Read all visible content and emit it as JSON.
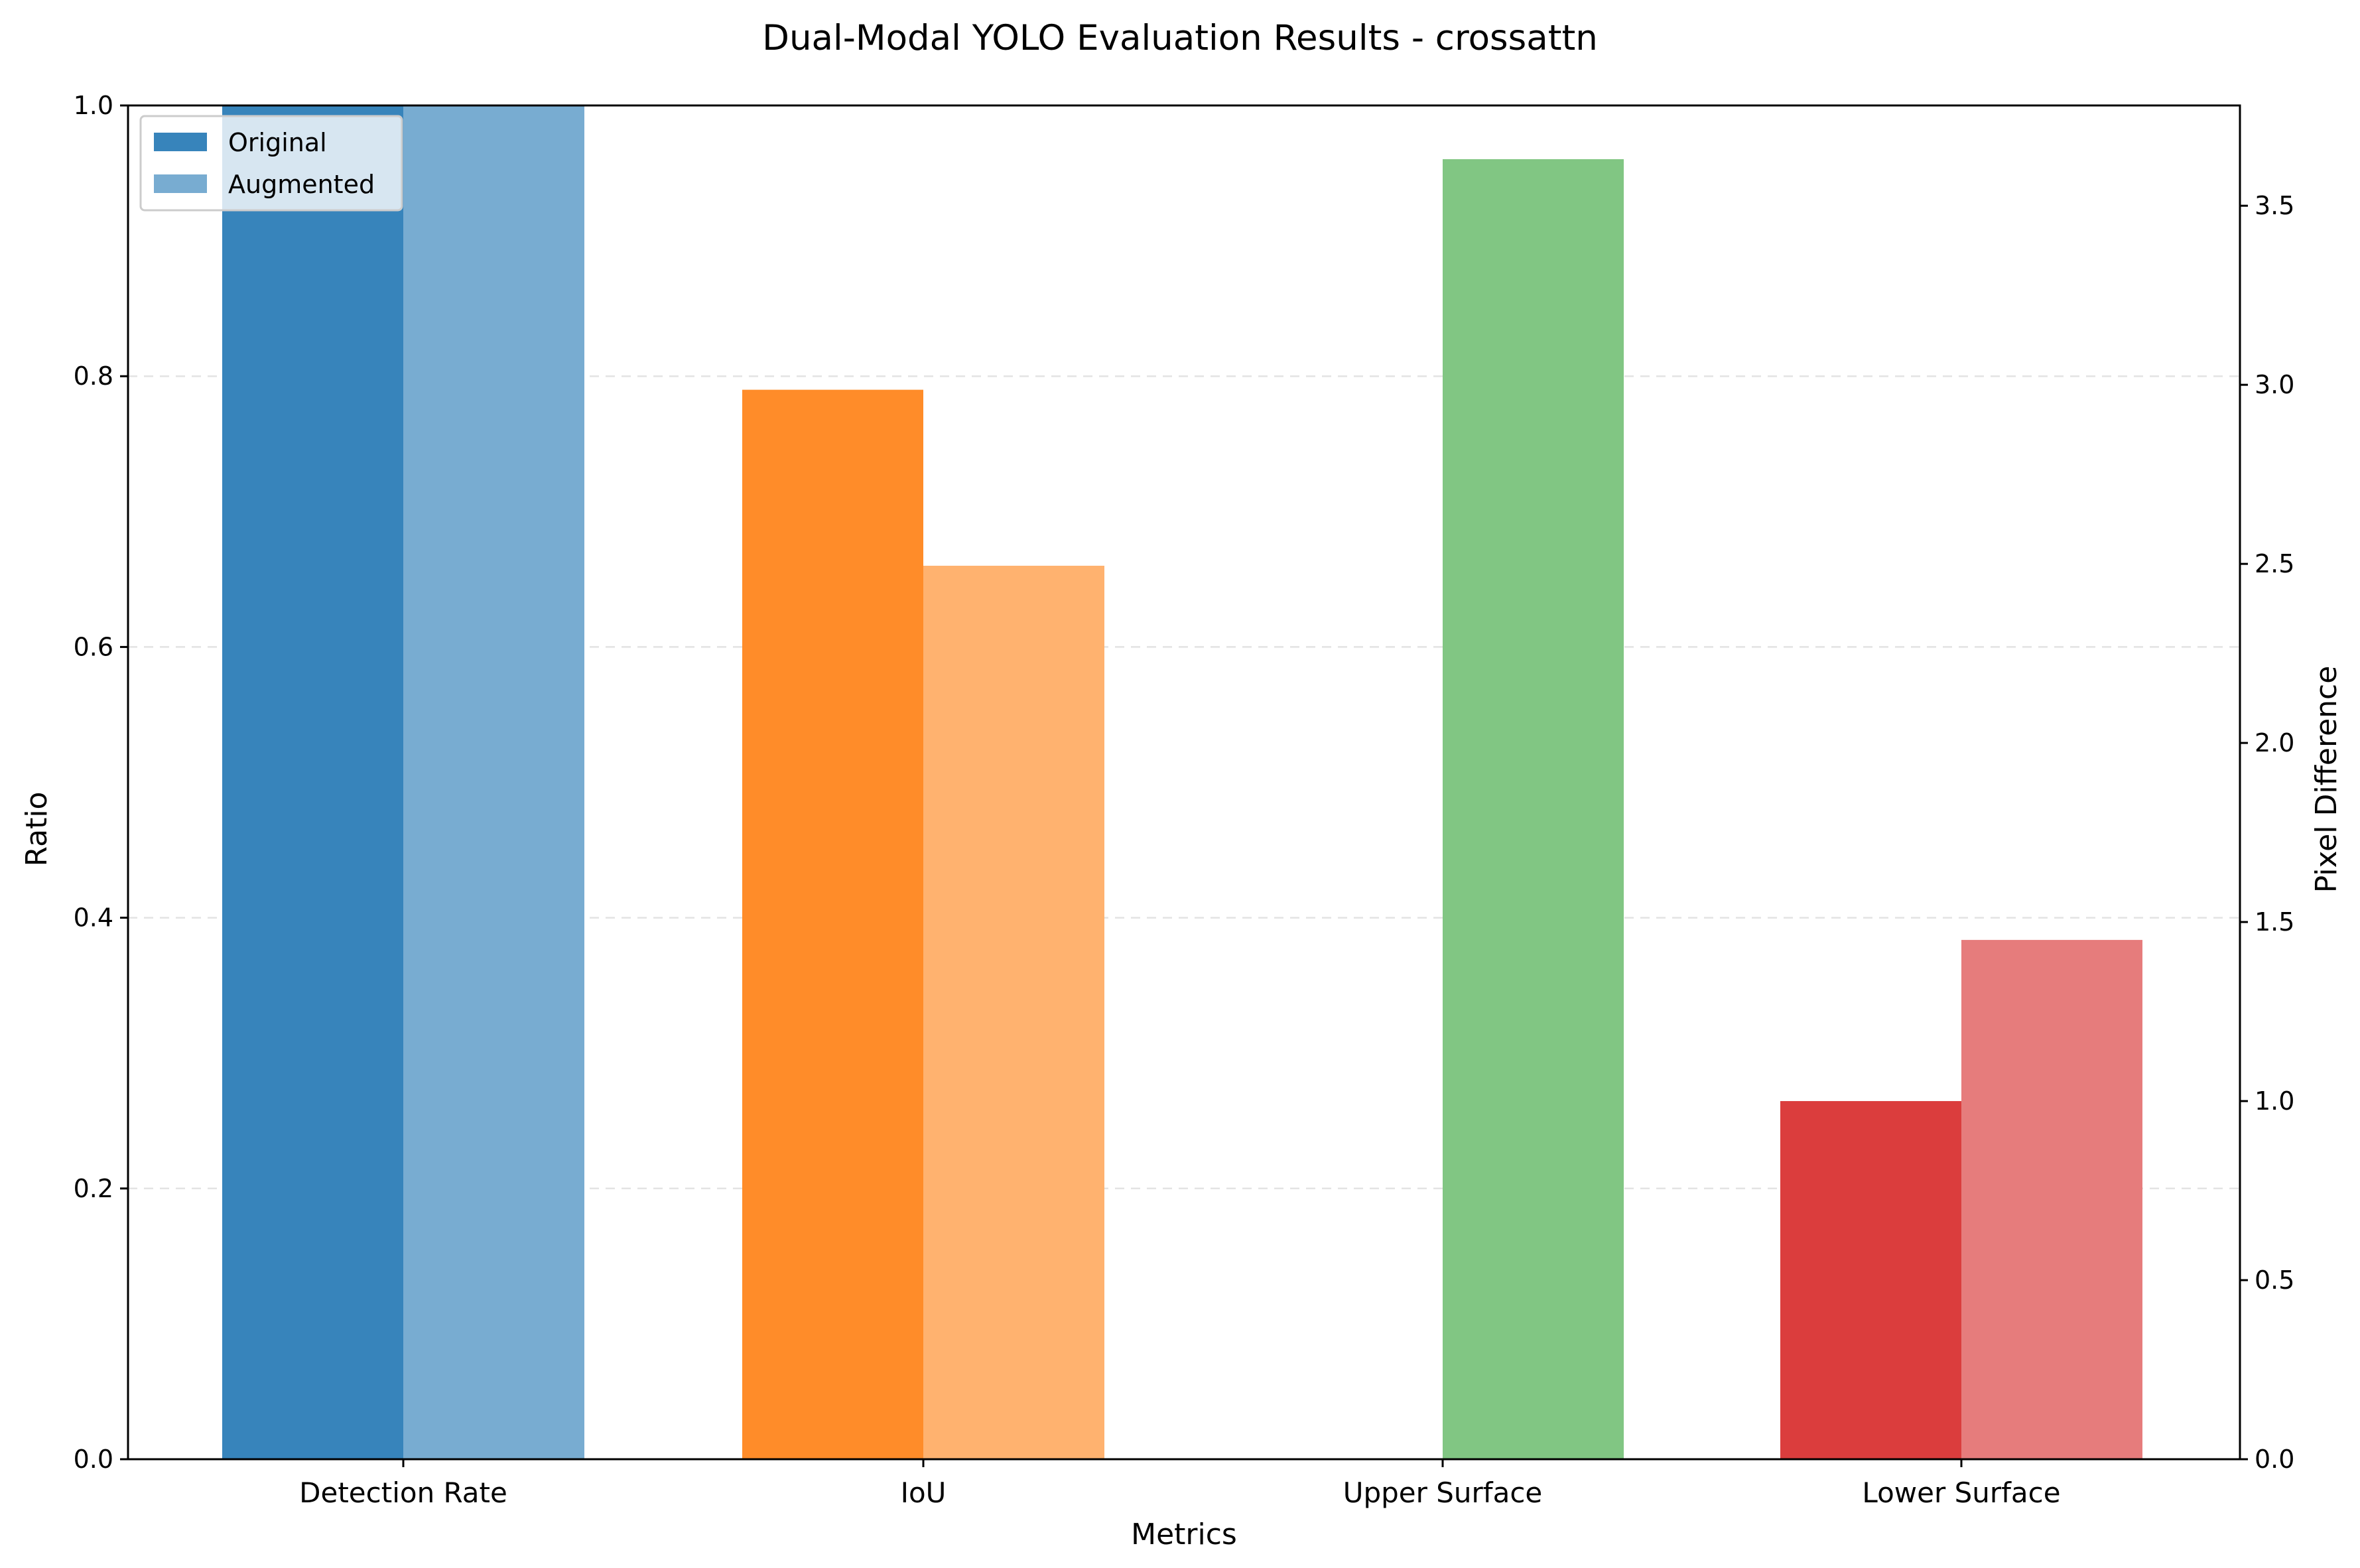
{
  "chart_data": {
    "type": "bar",
    "title": "Dual-Modal YOLO Evaluation Results - crossattn",
    "xlabel": "Metrics",
    "ylabel": "Ratio",
    "y2label": "Pixel Difference",
    "categories": [
      "Detection Rate",
      "IoU",
      "Upper Surface",
      "Lower Surface"
    ],
    "ylim": [
      0,
      1.0
    ],
    "y2lim": [
      0,
      3.78
    ],
    "yticks": [
      "0.0",
      "0.2",
      "0.4",
      "0.6",
      "0.8",
      "1.0"
    ],
    "y2ticks": [
      "0.0",
      "0.5",
      "1.0",
      "1.5",
      "2.0",
      "2.5",
      "3.0",
      "3.5"
    ],
    "grid": true,
    "legend_position": "upper-left",
    "series": [
      {
        "name": "Original",
        "values": [
          1.0,
          0.79,
          0.0,
          1.0
        ],
        "axes": [
          "left",
          "left",
          "right",
          "right"
        ],
        "colors": [
          "#3784bb",
          "#ff8c29",
          "#81c683",
          "#db3d3d"
        ]
      },
      {
        "name": "Augmented",
        "values": [
          1.0,
          0.66,
          3.63,
          1.45
        ],
        "axes": [
          "left",
          "left",
          "right",
          "right"
        ],
        "colors": [
          "#78acd1",
          "#ffb26f",
          "#81c683",
          "#e67c7c"
        ]
      }
    ],
    "legend_colors": [
      "#3784bb",
      "#78acd1"
    ]
  }
}
